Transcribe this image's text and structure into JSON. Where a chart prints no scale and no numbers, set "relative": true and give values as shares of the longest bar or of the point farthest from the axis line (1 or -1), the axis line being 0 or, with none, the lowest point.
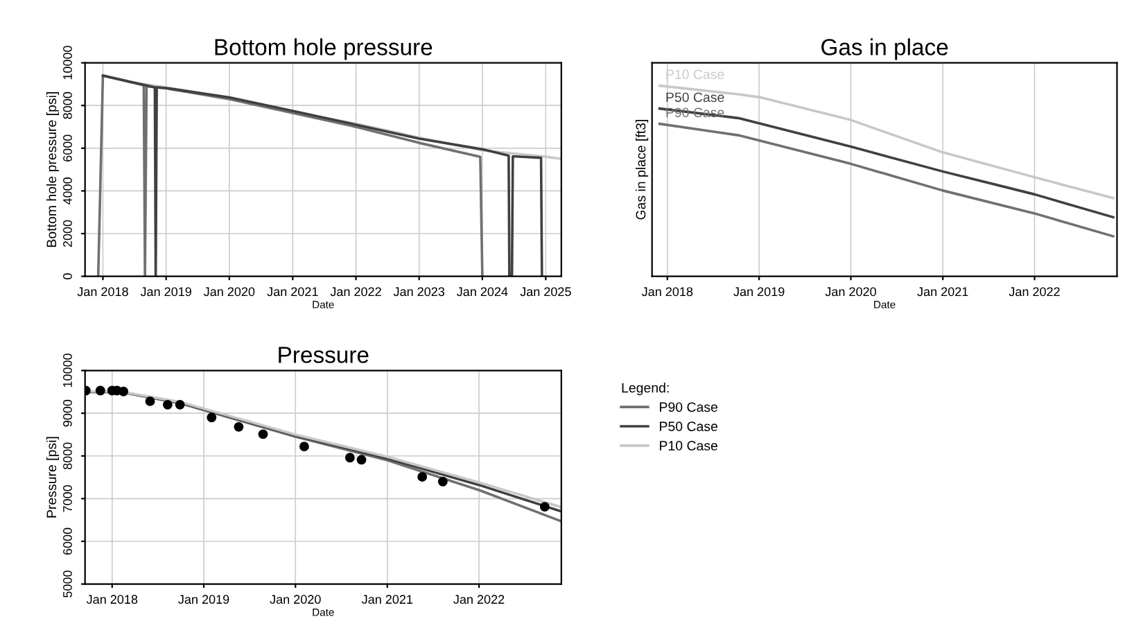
{
  "chart_data": [
    {
      "type": "line",
      "title": "Bottom hole pressure",
      "xlabel": "Date",
      "ylabel": "Bottom hole pressure [psi]",
      "xlim": [
        "2017-09-20",
        "2025-04-01"
      ],
      "ylim": [
        0,
        10000
      ],
      "xticks": [
        {
          "value": "2018-01-01",
          "label": "Jan 2018"
        },
        {
          "value": "2019-01-01",
          "label": "Jan 2019"
        },
        {
          "value": "2020-01-01",
          "label": "Jan 2020"
        },
        {
          "value": "2021-01-01",
          "label": "Jan 2021"
        },
        {
          "value": "2022-01-01",
          "label": "Jan 2022"
        },
        {
          "value": "2023-01-01",
          "label": "Jan 2023"
        },
        {
          "value": "2024-01-01",
          "label": "Jan 2024"
        },
        {
          "value": "2025-01-01",
          "label": "Jan 2025"
        }
      ],
      "yticks": [
        0,
        2000,
        4000,
        6000,
        8000,
        10000
      ],
      "grid": true,
      "legend": false,
      "series": [
        {
          "color": "#c8c8c8",
          "x": [
            "2018-06-01",
            "2019-01-01",
            "2020-01-01",
            "2021-01-01",
            "2022-01-01",
            "2023-01-01",
            "2024-01-01",
            "2025-01-01",
            "2025-04-01"
          ],
          "values": [
            9100,
            8850,
            8350,
            7700,
            7150,
            6500,
            5900,
            5600,
            5500
          ]
        },
        {
          "color": "#707070",
          "x": [
            "2017-12-05",
            "2018-01-01",
            "2018-08-25",
            "2018-09-01",
            "2018-09-10",
            "2019-01-01",
            "2020-01-01",
            "2021-01-01",
            "2022-01-01",
            "2023-01-01",
            "2023-12-20",
            "2024-01-01"
          ],
          "values": [
            0,
            9400,
            8950,
            0,
            8900,
            8800,
            8300,
            7650,
            7000,
            6250,
            5600,
            0
          ]
        },
        {
          "color": "#404040",
          "x": [
            "2018-01-01",
            "2018-10-28",
            "2018-11-02",
            "2018-11-08",
            "2019-01-01",
            "2020-01-01",
            "2021-01-01",
            "2022-01-01",
            "2023-01-01",
            "2024-01-01",
            "2024-06-01",
            "2024-06-05",
            "2024-06-20",
            "2024-06-25",
            "2024-12-05",
            "2024-12-10"
          ],
          "values": [
            9400,
            8850,
            0,
            8850,
            8820,
            8380,
            7750,
            7100,
            6450,
            5950,
            5650,
            0,
            0,
            5620,
            5550,
            0
          ]
        }
      ]
    },
    {
      "type": "line",
      "title": "Gas in place",
      "xlabel": "Date",
      "ylabel": "Gas in place [ft3]",
      "relative": true,
      "xlim": [
        "2017-11-01",
        "2022-11-25"
      ],
      "xticks": [
        {
          "value": "2018-01-01",
          "label": "Jan 2018"
        },
        {
          "value": "2019-01-01",
          "label": "Jan 2019"
        },
        {
          "value": "2020-01-01",
          "label": "Jan 2020"
        },
        {
          "value": "2021-01-01",
          "label": "Jan 2021"
        },
        {
          "value": "2022-01-01",
          "label": "Jan 2022"
        }
      ],
      "grid": "x",
      "legend": false,
      "series": [
        {
          "name": "P10 Case",
          "color": "#c8c8c8",
          "x": [
            "2017-12-01",
            "2018-10-10",
            "2019-01-01",
            "2020-01-01",
            "2021-01-01",
            "2022-01-01",
            "2022-11-10"
          ],
          "values": [
            1.0,
            0.955,
            0.94,
            0.82,
            0.65,
            0.52,
            0.41
          ]
        },
        {
          "name": "P50 Case",
          "color": "#404040",
          "x": [
            "2017-12-01",
            "2018-10-10",
            "2020-01-01",
            "2021-01-01",
            "2022-01-01",
            "2022-11-10"
          ],
          "values": [
            0.88,
            0.83,
            0.68,
            0.55,
            0.43,
            0.31
          ]
        },
        {
          "name": "P90 Case",
          "color": "#707070",
          "x": [
            "2017-12-01",
            "2018-10-10",
            "2020-01-01",
            "2021-01-01",
            "2022-01-01",
            "2022-11-10"
          ],
          "values": [
            0.8,
            0.74,
            0.59,
            0.45,
            0.33,
            0.21
          ]
        }
      ]
    },
    {
      "type": "line",
      "title": "Pressure",
      "xlabel": "Date",
      "ylabel": "Pressure [psi]",
      "xlim": [
        "2017-09-15",
        "2022-11-25"
      ],
      "ylim": [
        5000,
        10000
      ],
      "xticks": [
        {
          "value": "2018-01-01",
          "label": "Jan 2018"
        },
        {
          "value": "2019-01-01",
          "label": "Jan 2019"
        },
        {
          "value": "2020-01-01",
          "label": "Jan 2020"
        },
        {
          "value": "2021-01-01",
          "label": "Jan 2021"
        },
        {
          "value": "2022-01-01",
          "label": "Jan 2022"
        }
      ],
      "yticks": [
        5000,
        6000,
        7000,
        8000,
        9000,
        10000
      ],
      "grid": true,
      "legend": "right",
      "legend_title": "Legend:",
      "series": [
        {
          "name": "P90 Case",
          "color": "#707070",
          "x": [
            "2017-09-15",
            "2018-02-01",
            "2018-10-01",
            "2020-01-01",
            "2021-01-01",
            "2022-01-01",
            "2022-11-25"
          ],
          "values": [
            9500,
            9500,
            9230,
            8450,
            7900,
            7200,
            6470
          ]
        },
        {
          "name": "P50 Case",
          "color": "#404040",
          "x": [
            "2017-09-15",
            "2018-02-01",
            "2018-10-01",
            "2020-01-01",
            "2021-01-01",
            "2022-01-01",
            "2022-11-25"
          ],
          "values": [
            9500,
            9500,
            9250,
            8480,
            7940,
            7320,
            6700
          ]
        },
        {
          "name": "P10 Case",
          "color": "#c8c8c8",
          "x": [
            "2017-09-15",
            "2018-02-01",
            "2018-10-01",
            "2020-01-01",
            "2021-01-01",
            "2022-01-01",
            "2022-11-25"
          ],
          "values": [
            9510,
            9510,
            9260,
            8500,
            7980,
            7380,
            6800
          ]
        },
        {
          "type": "scatter",
          "color": "#000000",
          "marker": "circle",
          "x": [
            "2017-09-18",
            "2017-11-15",
            "2018-01-01",
            "2018-01-20",
            "2018-02-15",
            "2018-06-01",
            "2018-08-10",
            "2018-09-28",
            "2019-02-01",
            "2019-05-20",
            "2019-08-25",
            "2020-02-05",
            "2020-08-05",
            "2020-09-20",
            "2021-05-20",
            "2021-08-10",
            "2022-09-20"
          ],
          "values": [
            9530,
            9530,
            9530,
            9530,
            9510,
            9280,
            9200,
            9200,
            8900,
            8680,
            8510,
            8220,
            7960,
            7910,
            7510,
            7400,
            6810
          ]
        }
      ]
    }
  ]
}
